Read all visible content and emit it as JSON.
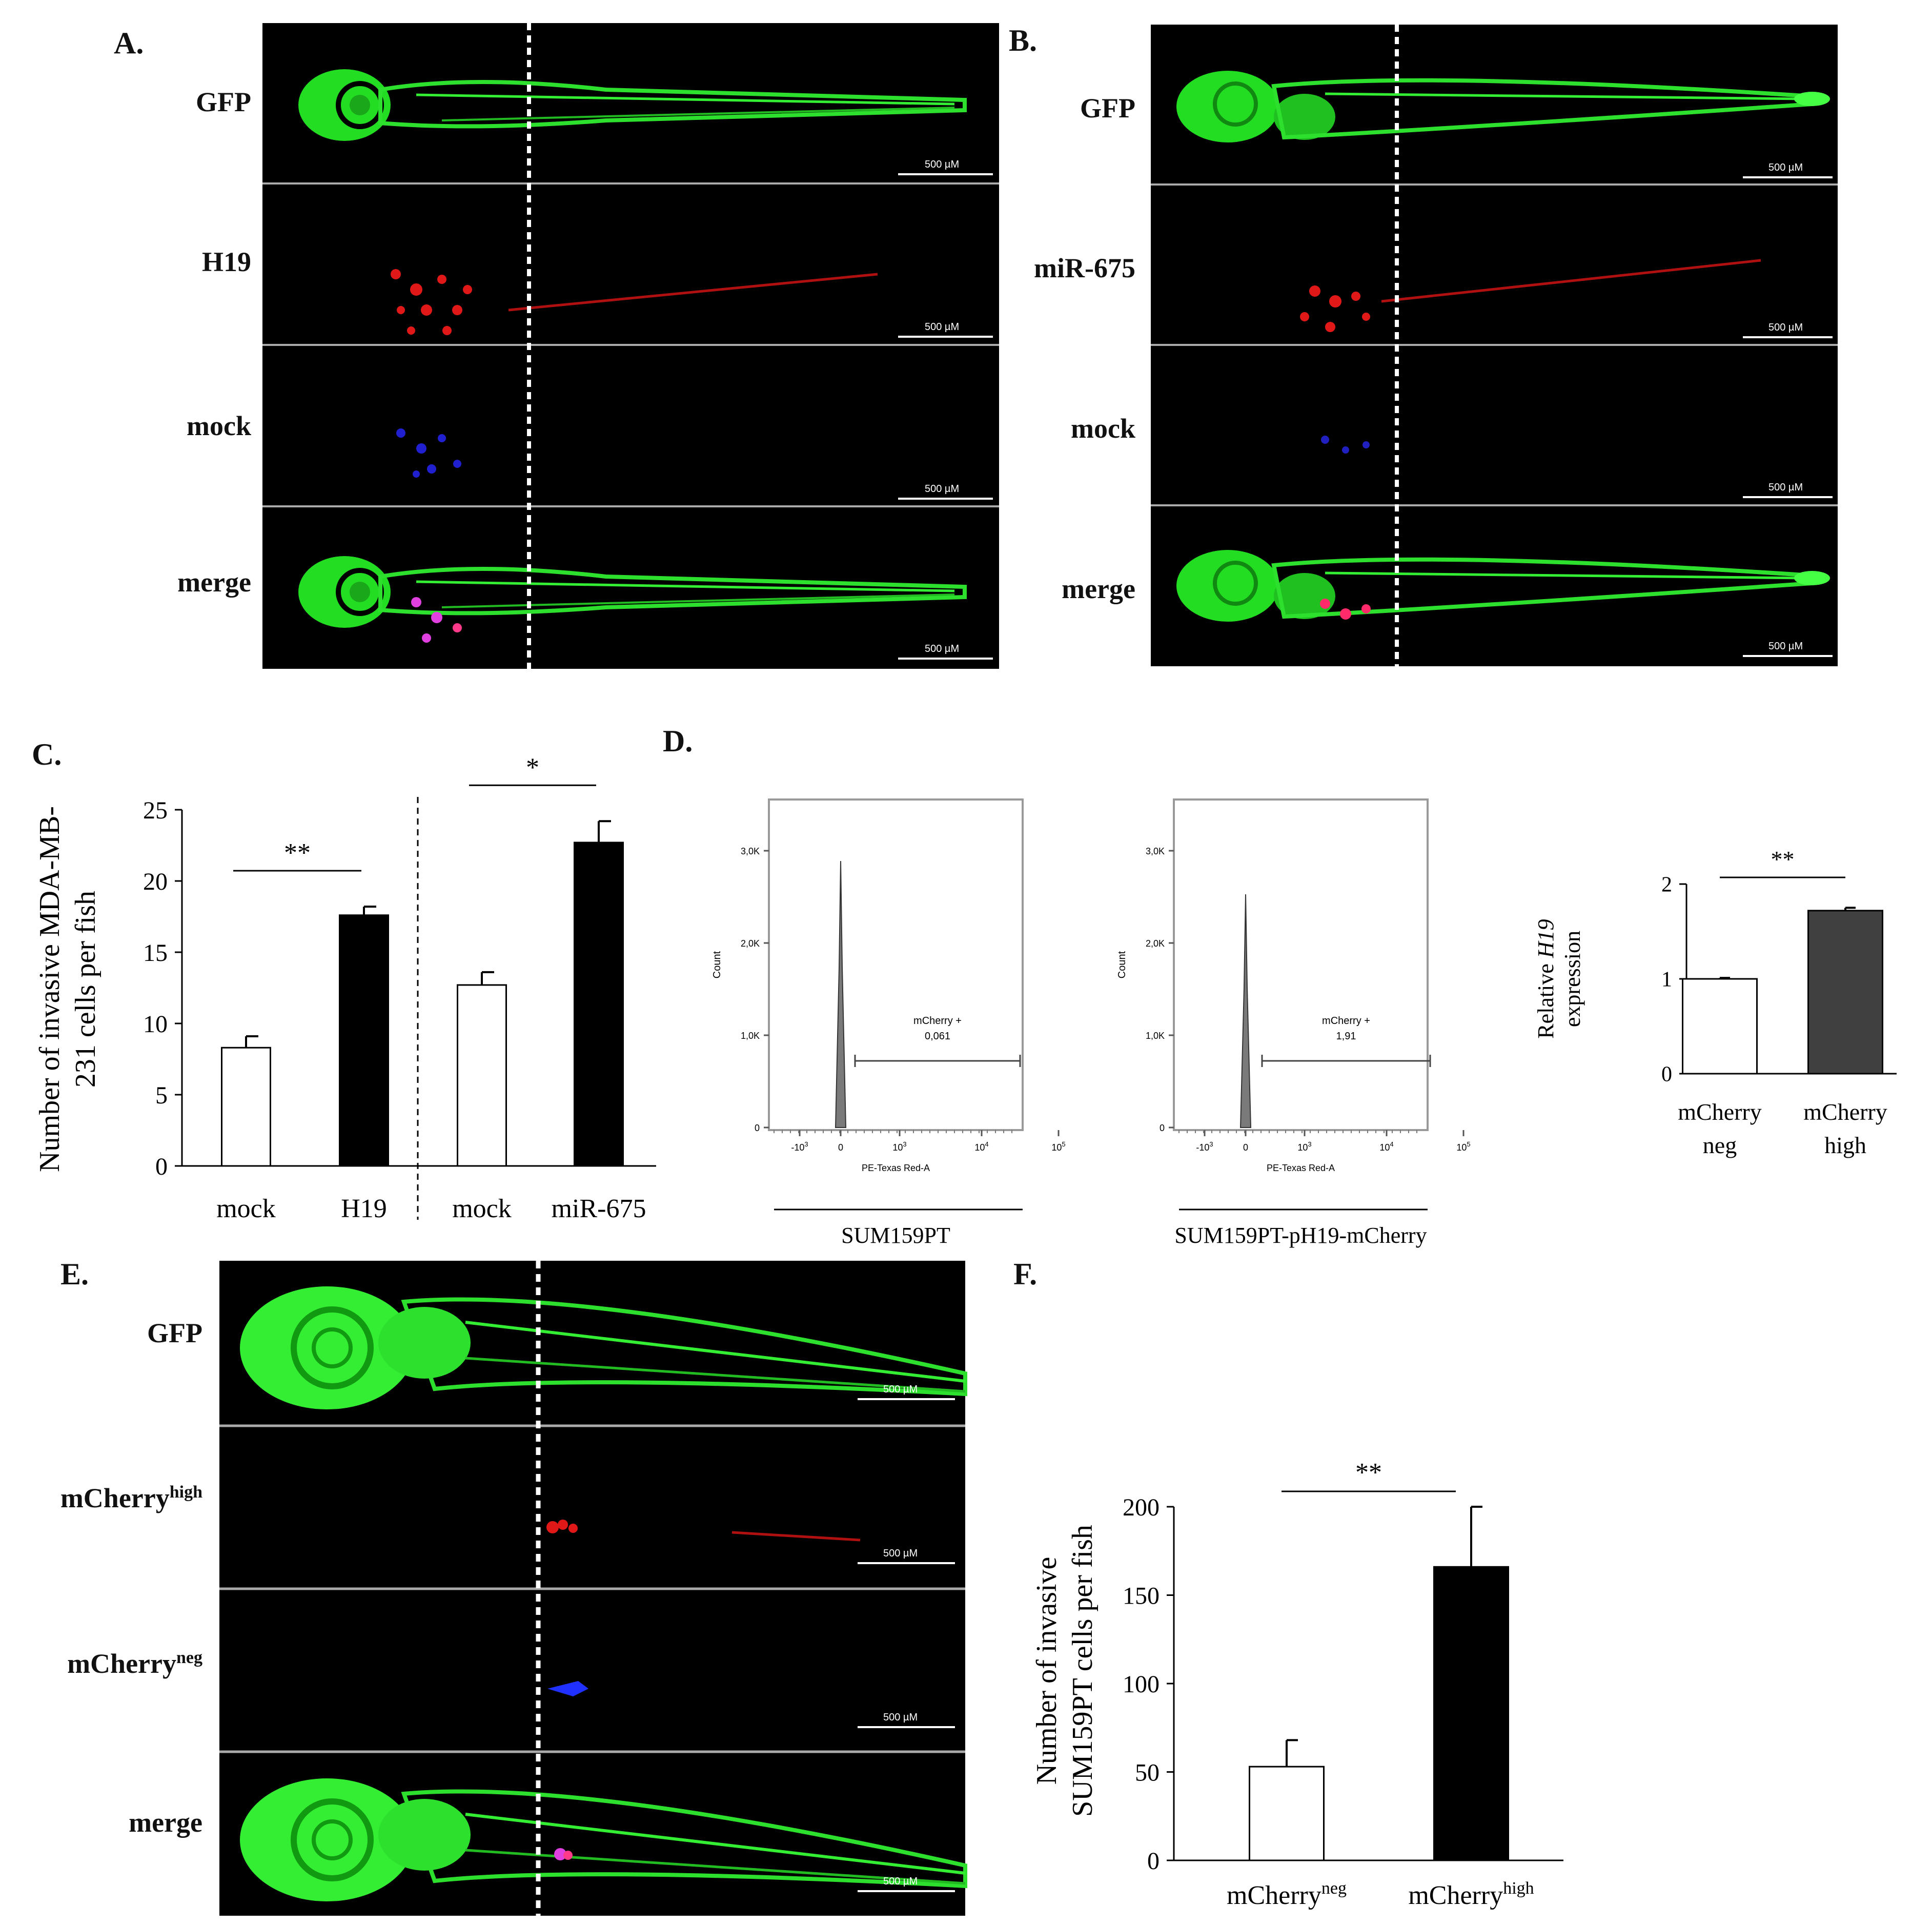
{
  "panels": {
    "A": {
      "label": "A.",
      "rows": [
        "GFP",
        "H19",
        "mock",
        "merge"
      ],
      "scalebar": "500 µM"
    },
    "B": {
      "label": "B.",
      "rows": [
        "GFP",
        "miR-675",
        "mock",
        "merge"
      ],
      "scalebar": "500 µM"
    },
    "C": {
      "label": "C."
    },
    "D": {
      "label": "D.",
      "flow_left": {
        "sample": "SUM159PT",
        "gate_name": "mCherry +",
        "gate_value": "0,061",
        "y_axis_label": "Count",
        "x_axis_label": "PE-Texas Red-A",
        "y_ticks": [
          "0",
          "1,0K",
          "2,0K",
          "3,0K"
        ],
        "x_ticks": [
          "-10",
          "0",
          "10",
          "10",
          "10"
        ],
        "x_tick_exponents": [
          "3",
          "",
          "3",
          "4",
          "5"
        ]
      },
      "flow_right": {
        "sample": "SUM159PT-pH19-mCherry",
        "gate_name": "mCherry +",
        "gate_value": "1,91",
        "y_axis_label": "Count",
        "x_axis_label": "PE-Texas Red-A",
        "y_ticks": [
          "0",
          "1,0K",
          "2,0K",
          "3,0K"
        ],
        "x_ticks": [
          "-10",
          "0",
          "10",
          "10",
          "10"
        ],
        "x_tick_exponents": [
          "3",
          "",
          "3",
          "4",
          "5"
        ]
      }
    },
    "E": {
      "label": "E.",
      "rows": [
        {
          "base": "GFP",
          "sup": ""
        },
        {
          "base": "mCherry",
          "sup": "high"
        },
        {
          "base": "mCherry",
          "sup": "neg"
        },
        {
          "base": "merge",
          "sup": ""
        }
      ],
      "scalebar": "500 µM"
    },
    "F": {
      "label": "F."
    }
  },
  "chart_data": [
    {
      "id": "C",
      "type": "bar",
      "categories": [
        "mock",
        "H19",
        "mock",
        "miR-675"
      ],
      "values": [
        8.3,
        17.6,
        12.7,
        22.7
      ],
      "errors": [
        0.8,
        0.6,
        0.9,
        1.5
      ],
      "bar_fill": [
        "#ffffff",
        "#000000",
        "#ffffff",
        "#000000"
      ],
      "ylabel_line1": "Number of invasive MDA-MB-",
      "ylabel_line2": "231 cells per fish",
      "ylim": [
        0,
        25
      ],
      "yticks": [
        0,
        5,
        10,
        15,
        20,
        25
      ],
      "significance": [
        {
          "between": [
            0,
            1
          ],
          "label": "**"
        },
        {
          "between": [
            2,
            3
          ],
          "label": "*"
        }
      ]
    },
    {
      "id": "D-bar",
      "type": "bar",
      "categories": [
        [
          "mCherry",
          "neg"
        ],
        [
          "mCherry",
          "high"
        ]
      ],
      "values": [
        1.0,
        1.72
      ],
      "errors": [
        0.01,
        0.03
      ],
      "bar_fill": [
        "#ffffff",
        "#404040"
      ],
      "ylabel_line1": "Relative H19",
      "ylabel_italic": "H19",
      "ylabel_line2": "expression",
      "ylim": [
        0,
        2
      ],
      "yticks": [
        0,
        1,
        2
      ],
      "significance": [
        {
          "between": [
            0,
            1
          ],
          "label": "**"
        }
      ]
    },
    {
      "id": "F",
      "type": "bar",
      "categories": [
        {
          "base": "mCherry",
          "sup": "neg"
        },
        {
          "base": "mCherry",
          "sup": "high"
        }
      ],
      "values": [
        53,
        166
      ],
      "errors": [
        15,
        34
      ],
      "bar_fill": [
        "#ffffff",
        "#000000"
      ],
      "ylabel_line1": "Number of invasive",
      "ylabel_line2": "SUM159PT cells per fish",
      "ylim": [
        0,
        200
      ],
      "yticks": [
        0,
        50,
        100,
        150,
        200
      ],
      "significance": [
        {
          "between": [
            0,
            1
          ],
          "label": "**"
        }
      ]
    }
  ]
}
